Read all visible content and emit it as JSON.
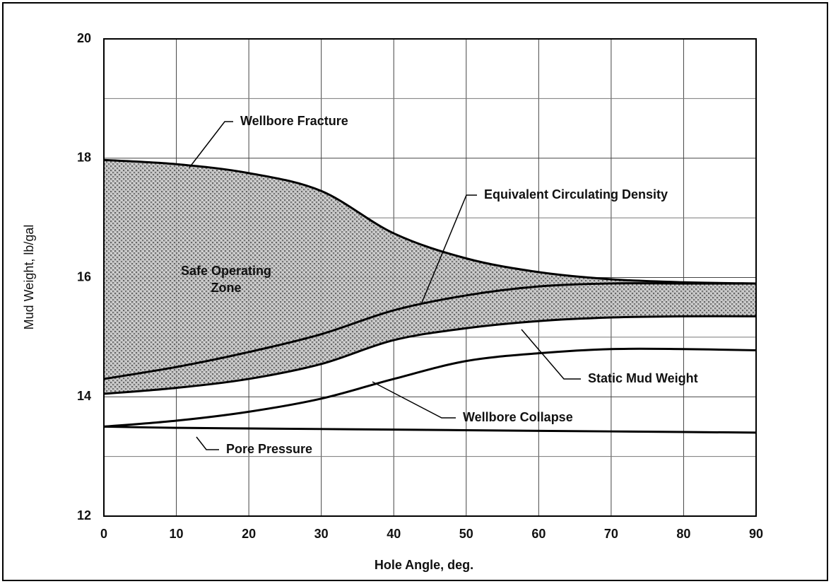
{
  "chart_data": {
    "type": "line",
    "x_label": "Hole Angle, deg.",
    "y_label": "Mud Weight, lb/gal",
    "zone_label": [
      "Safe Operating",
      "Zone"
    ],
    "x": [
      0,
      10,
      20,
      30,
      40,
      50,
      60,
      70,
      80,
      90
    ],
    "series": [
      {
        "name": "Wellbore Fracture",
        "color": "#000000",
        "values": [
          17.97,
          17.9,
          17.75,
          17.45,
          16.74,
          16.32,
          16.09,
          15.97,
          15.92,
          15.9
        ]
      },
      {
        "name": "Equivalent Circulating Density",
        "color": "#000000",
        "values": [
          14.3,
          14.5,
          14.75,
          15.05,
          15.45,
          15.7,
          15.85,
          15.9,
          15.9,
          15.9
        ]
      },
      {
        "name": "Static Mud Weight",
        "color": "#000000",
        "values": [
          14.05,
          14.15,
          14.3,
          14.55,
          14.95,
          15.15,
          15.27,
          15.33,
          15.35,
          15.35
        ]
      },
      {
        "name": "Wellbore Collapse",
        "color": "#000000",
        "values": [
          13.5,
          13.6,
          13.75,
          13.97,
          14.3,
          14.6,
          14.73,
          14.8,
          14.8,
          14.78
        ]
      },
      {
        "name": "Pore Pressure",
        "color": "#000000",
        "values": [
          13.5,
          13.48,
          13.47,
          13.46,
          13.45,
          13.44,
          13.43,
          13.42,
          13.41,
          13.4
        ]
      }
    ],
    "shaded_between": [
      0,
      2
    ],
    "shade_color": "#9a9a9a",
    "xlim": [
      0,
      90
    ],
    "xticks": [
      0,
      10,
      20,
      30,
      40,
      50,
      60,
      70,
      80,
      90
    ],
    "ylim": [
      12,
      20
    ],
    "yticks": [
      12,
      14,
      16,
      18,
      20
    ],
    "yminor": [
      13,
      15,
      17,
      19
    ],
    "grid": true
  }
}
